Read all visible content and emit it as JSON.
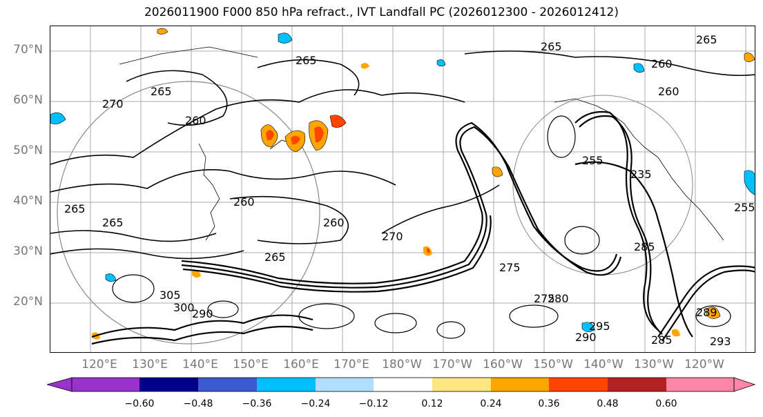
{
  "title": "2026011900 F000 850 hPa refract., IVT Landfall PC (2026012300 - 2026012412)",
  "lat_labels": [
    "70°N",
    "60°N",
    "50°N",
    "40°N",
    "30°N",
    "20°N"
  ],
  "lon_labels": [
    "120°E",
    "130°E",
    "140°E",
    "150°E",
    "160°E",
    "170°E",
    "180°W",
    "170°W",
    "160°W",
    "150°W",
    "140°W",
    "130°W",
    "120°W"
  ],
  "contour_labels": [
    "265",
    "270",
    "265",
    "260",
    "260",
    "265",
    "260",
    "265",
    "270",
    "265",
    "260",
    "265",
    "275",
    "265",
    "260",
    "255",
    "235",
    "255",
    "285",
    "275",
    "305",
    "300",
    "290",
    "295",
    "290",
    "280",
    "285",
    "289",
    "293"
  ],
  "colorbar": {
    "ticks": [
      "−0.60",
      "−0.48",
      "−0.36",
      "−0.24",
      "−0.12",
      "0.12",
      "0.24",
      "0.36",
      "0.48",
      "0.60"
    ],
    "colors": [
      "#9932cc",
      "#00008b",
      "#3a5bcf",
      "#00bfff",
      "#b0e0ff",
      "#ffffff",
      "#ffe680",
      "#ffa500",
      "#ff4500",
      "#b22222",
      "#ff85a8"
    ]
  },
  "colors": {
    "frame": "#000000",
    "grid": "#aaaaaa",
    "tick_text": "#777777"
  }
}
